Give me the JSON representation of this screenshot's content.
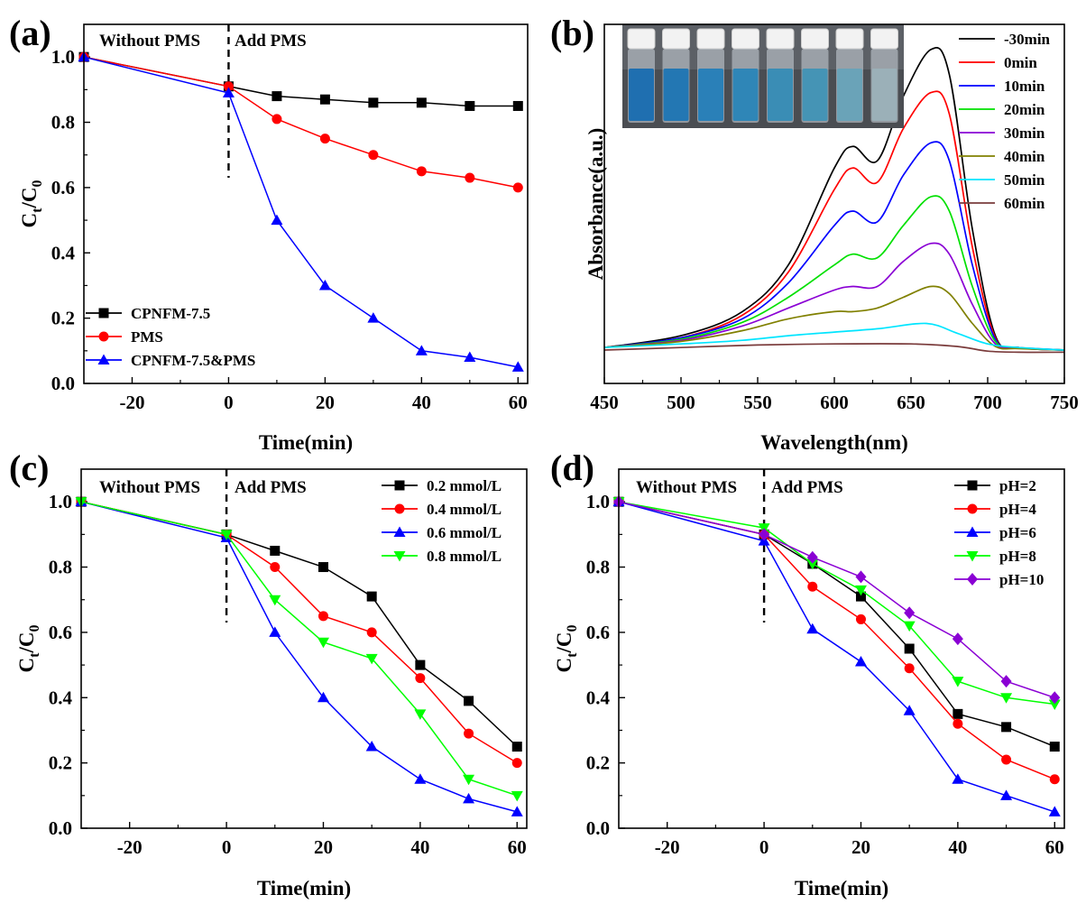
{
  "chart_data": [
    {
      "panel": "a",
      "panel_label": "(a)",
      "type": "line",
      "xlabel": "Time(min)",
      "ylabel": "C",
      "ylabel_sub1": "t",
      "ylabel_slash": "/C",
      "ylabel_sub2": "0",
      "xlim": [
        -30,
        62
      ],
      "ylim": [
        0.0,
        1.1
      ],
      "xticks": [
        -20,
        0,
        20,
        40,
        60
      ],
      "yticks": [
        0.0,
        0.2,
        0.4,
        0.6,
        0.8,
        1.0
      ],
      "ytick_labels": [
        "0.0",
        "0.2",
        "0.4",
        "0.6",
        "0.8",
        "1.0"
      ],
      "dashed_line_x": 0,
      "dashed_line_y": [
        0.63,
        1.1
      ],
      "annotations": [
        "Without PMS",
        "Add PMS"
      ],
      "legend_position": "bottom-left",
      "series": [
        {
          "name": "CPNFM-7.5",
          "color": "#000000",
          "marker": "square",
          "x": [
            -30,
            0,
            10,
            20,
            30,
            40,
            50,
            60
          ],
          "y": [
            1.0,
            0.91,
            0.88,
            0.87,
            0.86,
            0.86,
            0.85,
            0.85
          ]
        },
        {
          "name": "PMS",
          "color": "#ff0000",
          "marker": "circle",
          "x": [
            -30,
            0,
            10,
            20,
            30,
            40,
            50,
            60
          ],
          "y": [
            1.0,
            0.91,
            0.81,
            0.75,
            0.7,
            0.65,
            0.63,
            0.6
          ]
        },
        {
          "name": "CPNFM-7.5&PMS",
          "color": "#0000ff",
          "marker": "triangle-up",
          "x": [
            -30,
            0,
            10,
            20,
            30,
            40,
            50,
            60
          ],
          "y": [
            1.0,
            0.89,
            0.5,
            0.3,
            0.2,
            0.1,
            0.08,
            0.05
          ]
        }
      ]
    },
    {
      "panel": "b",
      "panel_label": "(b)",
      "type": "line",
      "xlabel": "Wavelength(nm)",
      "ylabel": "Absorbance(a.u.)",
      "xlim": [
        450,
        750
      ],
      "ylim": [
        0,
        1.0
      ],
      "xticks": [
        450,
        500,
        550,
        600,
        650,
        700,
        750
      ],
      "yticks": [],
      "legend_position": "top-right",
      "inset_photo": {
        "description_name": "vials-photo-inset",
        "vial_count": 8
      },
      "series": [
        {
          "name": "-30min",
          "color": "#000000",
          "x": [
            450,
            500,
            540,
            570,
            600,
            612,
            628,
            645,
            663,
            675,
            690,
            705,
            720,
            750
          ],
          "y": [
            0.1,
            0.133,
            0.2,
            0.33,
            0.6,
            0.66,
            0.62,
            0.8,
            0.93,
            0.86,
            0.43,
            0.133,
            0.1,
            0.093
          ]
        },
        {
          "name": "0min",
          "color": "#ff0000",
          "x": [
            450,
            500,
            540,
            570,
            600,
            612,
            628,
            645,
            663,
            675,
            690,
            705,
            720,
            750
          ],
          "y": [
            0.1,
            0.127,
            0.19,
            0.31,
            0.54,
            0.6,
            0.56,
            0.71,
            0.81,
            0.75,
            0.38,
            0.127,
            0.1,
            0.093
          ]
        },
        {
          "name": "10min",
          "color": "#0000ff",
          "x": [
            450,
            500,
            540,
            570,
            600,
            612,
            628,
            645,
            663,
            675,
            690,
            705,
            720,
            750
          ],
          "y": [
            0.1,
            0.127,
            0.18,
            0.28,
            0.44,
            0.48,
            0.45,
            0.58,
            0.67,
            0.62,
            0.33,
            0.123,
            0.1,
            0.093
          ]
        },
        {
          "name": "20min",
          "color": "#00e000",
          "x": [
            450,
            500,
            540,
            570,
            600,
            612,
            628,
            645,
            663,
            675,
            690,
            705,
            720,
            750
          ],
          "y": [
            0.1,
            0.123,
            0.17,
            0.24,
            0.33,
            0.36,
            0.35,
            0.44,
            0.52,
            0.48,
            0.27,
            0.117,
            0.1,
            0.093
          ]
        },
        {
          "name": "30min",
          "color": "#8a00d4",
          "x": [
            450,
            500,
            540,
            570,
            600,
            612,
            628,
            645,
            663,
            675,
            690,
            705,
            720,
            750
          ],
          "y": [
            0.1,
            0.12,
            0.16,
            0.21,
            0.26,
            0.27,
            0.27,
            0.34,
            0.39,
            0.36,
            0.22,
            0.11,
            0.1,
            0.093
          ]
        },
        {
          "name": "40min",
          "color": "#808000",
          "x": [
            450,
            500,
            540,
            570,
            600,
            612,
            628,
            645,
            663,
            675,
            690,
            705,
            720,
            750
          ],
          "y": [
            0.1,
            0.117,
            0.147,
            0.18,
            0.2,
            0.2,
            0.21,
            0.24,
            0.27,
            0.25,
            0.167,
            0.103,
            0.097,
            0.093
          ]
        },
        {
          "name": "50min",
          "color": "#00e5ff",
          "x": [
            450,
            500,
            540,
            570,
            600,
            630,
            660,
            680,
            700,
            720,
            750
          ],
          "y": [
            0.1,
            0.11,
            0.12,
            0.133,
            0.143,
            0.153,
            0.167,
            0.14,
            0.11,
            0.1,
            0.093
          ]
        },
        {
          "name": "60min",
          "color": "#7a3b3b",
          "x": [
            450,
            500,
            550,
            600,
            650,
            680,
            700,
            720,
            750
          ],
          "y": [
            0.093,
            0.1,
            0.107,
            0.11,
            0.11,
            0.103,
            0.09,
            0.087,
            0.087
          ]
        }
      ]
    },
    {
      "panel": "c",
      "panel_label": "(c)",
      "type": "line",
      "xlabel": "Time(min)",
      "ylabel": "C",
      "ylabel_sub1": "t",
      "ylabel_slash": "/C",
      "ylabel_sub2": "0",
      "xlim": [
        -30,
        62
      ],
      "ylim": [
        0.0,
        1.1
      ],
      "xticks": [
        -20,
        0,
        20,
        40,
        60
      ],
      "yticks": [
        0.0,
        0.2,
        0.4,
        0.6,
        0.8,
        1.0
      ],
      "ytick_labels": [
        "0.0",
        "0.2",
        "0.4",
        "0.6",
        "0.8",
        "1.0"
      ],
      "dashed_line_x": 0,
      "dashed_line_y": [
        0.63,
        1.1
      ],
      "annotations": [
        "Without PMS",
        "Add PMS"
      ],
      "legend_position": "top-right",
      "series": [
        {
          "name": "0.2 mmol/L",
          "color": "#000000",
          "marker": "square",
          "x": [
            -30,
            0,
            10,
            20,
            30,
            40,
            50,
            60
          ],
          "y": [
            1.0,
            0.9,
            0.85,
            0.8,
            0.71,
            0.5,
            0.39,
            0.25
          ]
        },
        {
          "name": "0.4 mmol/L",
          "color": "#ff0000",
          "marker": "circle",
          "x": [
            -30,
            0,
            10,
            20,
            30,
            40,
            50,
            60
          ],
          "y": [
            1.0,
            0.9,
            0.8,
            0.65,
            0.6,
            0.46,
            0.29,
            0.2
          ]
        },
        {
          "name": "0.6 mmol/L",
          "color": "#0000ff",
          "marker": "triangle-up",
          "x": [
            -30,
            0,
            10,
            20,
            30,
            40,
            50,
            60
          ],
          "y": [
            1.0,
            0.89,
            0.6,
            0.4,
            0.25,
            0.15,
            0.09,
            0.05
          ]
        },
        {
          "name": "0.8 mmol/L",
          "color": "#00ff00",
          "marker": "triangle-down",
          "x": [
            -30,
            0,
            10,
            20,
            30,
            40,
            50,
            60
          ],
          "y": [
            1.0,
            0.9,
            0.7,
            0.57,
            0.52,
            0.35,
            0.15,
            0.1
          ]
        }
      ]
    },
    {
      "panel": "d",
      "panel_label": "(d)",
      "type": "line",
      "xlabel": "Time(min)",
      "ylabel": "C",
      "ylabel_sub1": "t",
      "ylabel_slash": "/C",
      "ylabel_sub2": "0",
      "xlim": [
        -30,
        62
      ],
      "ylim": [
        0.0,
        1.1
      ],
      "xticks": [
        -20,
        0,
        20,
        40,
        60
      ],
      "yticks": [
        0.0,
        0.2,
        0.4,
        0.6,
        0.8,
        1.0
      ],
      "ytick_labels": [
        "0.0",
        "0.2",
        "0.4",
        "0.6",
        "0.8",
        "1.0"
      ],
      "dashed_line_x": 0,
      "dashed_line_y": [
        0.63,
        1.1
      ],
      "annotations": [
        "Without PMS",
        "Add PMS"
      ],
      "legend_position": "top-right",
      "series": [
        {
          "name": "pH=2",
          "color": "#000000",
          "marker": "square",
          "x": [
            -30,
            0,
            10,
            20,
            30,
            40,
            50,
            60
          ],
          "y": [
            1.0,
            0.9,
            0.81,
            0.71,
            0.55,
            0.35,
            0.31,
            0.25
          ]
        },
        {
          "name": "pH=4",
          "color": "#ff0000",
          "marker": "circle",
          "x": [
            -30,
            0,
            10,
            20,
            30,
            40,
            50,
            60
          ],
          "y": [
            1.0,
            0.9,
            0.74,
            0.64,
            0.49,
            0.32,
            0.21,
            0.15
          ]
        },
        {
          "name": "pH=6",
          "color": "#0000ff",
          "marker": "triangle-up",
          "x": [
            -30,
            0,
            10,
            20,
            30,
            40,
            50,
            60
          ],
          "y": [
            1.0,
            0.88,
            0.61,
            0.51,
            0.36,
            0.15,
            0.1,
            0.05
          ]
        },
        {
          "name": "pH=8",
          "color": "#00ff00",
          "marker": "triangle-down",
          "x": [
            -30,
            0,
            10,
            20,
            30,
            40,
            50,
            60
          ],
          "y": [
            1.0,
            0.92,
            0.81,
            0.73,
            0.62,
            0.45,
            0.4,
            0.38
          ]
        },
        {
          "name": "pH=10",
          "color": "#8a00d4",
          "marker": "diamond",
          "x": [
            -30,
            0,
            10,
            20,
            30,
            40,
            50,
            60
          ],
          "y": [
            1.0,
            0.9,
            0.83,
            0.77,
            0.66,
            0.58,
            0.45,
            0.4
          ]
        }
      ]
    }
  ]
}
